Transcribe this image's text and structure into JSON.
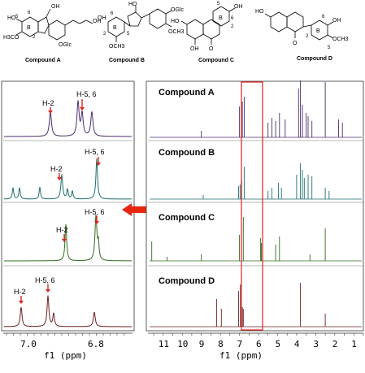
{
  "compounds": [
    {
      "label": "Compound A"
    },
    {
      "label": "Compound B"
    },
    {
      "label": "Compound C"
    },
    {
      "label": "Compound D"
    }
  ],
  "structure_text": {
    "a_oh1": "OH",
    "a_oh2": "OH",
    "a_oh3": "HO",
    "a_och3": "H3CO",
    "a_oglc": "OGlc",
    "a_n5": "5",
    "a_n6": "6",
    "a_n2": "2",
    "a_b": "B",
    "b_oh": "OH",
    "b_oh2": "HO",
    "b_och3": "OCH3",
    "b_oglc": "OGlc",
    "b_och3b": "OCH3",
    "b_n6": "6",
    "b_n5": "5",
    "b_n2": "2",
    "b_b": "B",
    "c_oh1": "HO",
    "c_oh2": "OH",
    "c_oh3": "OH",
    "c_o": "O",
    "c_n5": "5",
    "c_n6": "6",
    "c_n2": "2",
    "c_b": "B",
    "d_oh": "HO",
    "d_oh2": "OH",
    "d_och3": "OCH3",
    "d_o": "O",
    "d_n6": "6",
    "d_n5": "5",
    "d_n2": "2",
    "d_b": "B"
  },
  "left_panel": {
    "annotations": [
      {
        "h2": "H-2",
        "h56": "H-5, 6"
      },
      {
        "h2": "H-2",
        "h56": "H-5, 6"
      },
      {
        "h2": "H-2",
        "h56": "H-5, 6"
      },
      {
        "h2": "H-2",
        "h56": "H-5, 6"
      }
    ],
    "axis_ticks": [
      "7.0",
      "6.8"
    ],
    "axis_label": "f1 (ppm)",
    "colors": [
      "#4b2d6e",
      "#1f6e6e",
      "#2e6b1a",
      "#6b1f1f"
    ]
  },
  "right_panel": {
    "titles": [
      "Compound A",
      "Compound B",
      "Compound C",
      "Compound D"
    ],
    "axis_ticks": [
      "11",
      "10",
      "9",
      "8",
      "7",
      "6",
      "5",
      "4",
      "3",
      "2",
      "1"
    ],
    "axis_label": "f1 (ppm)",
    "highlight_color": "#e02020"
  },
  "arrow_color": "#e8260f"
}
